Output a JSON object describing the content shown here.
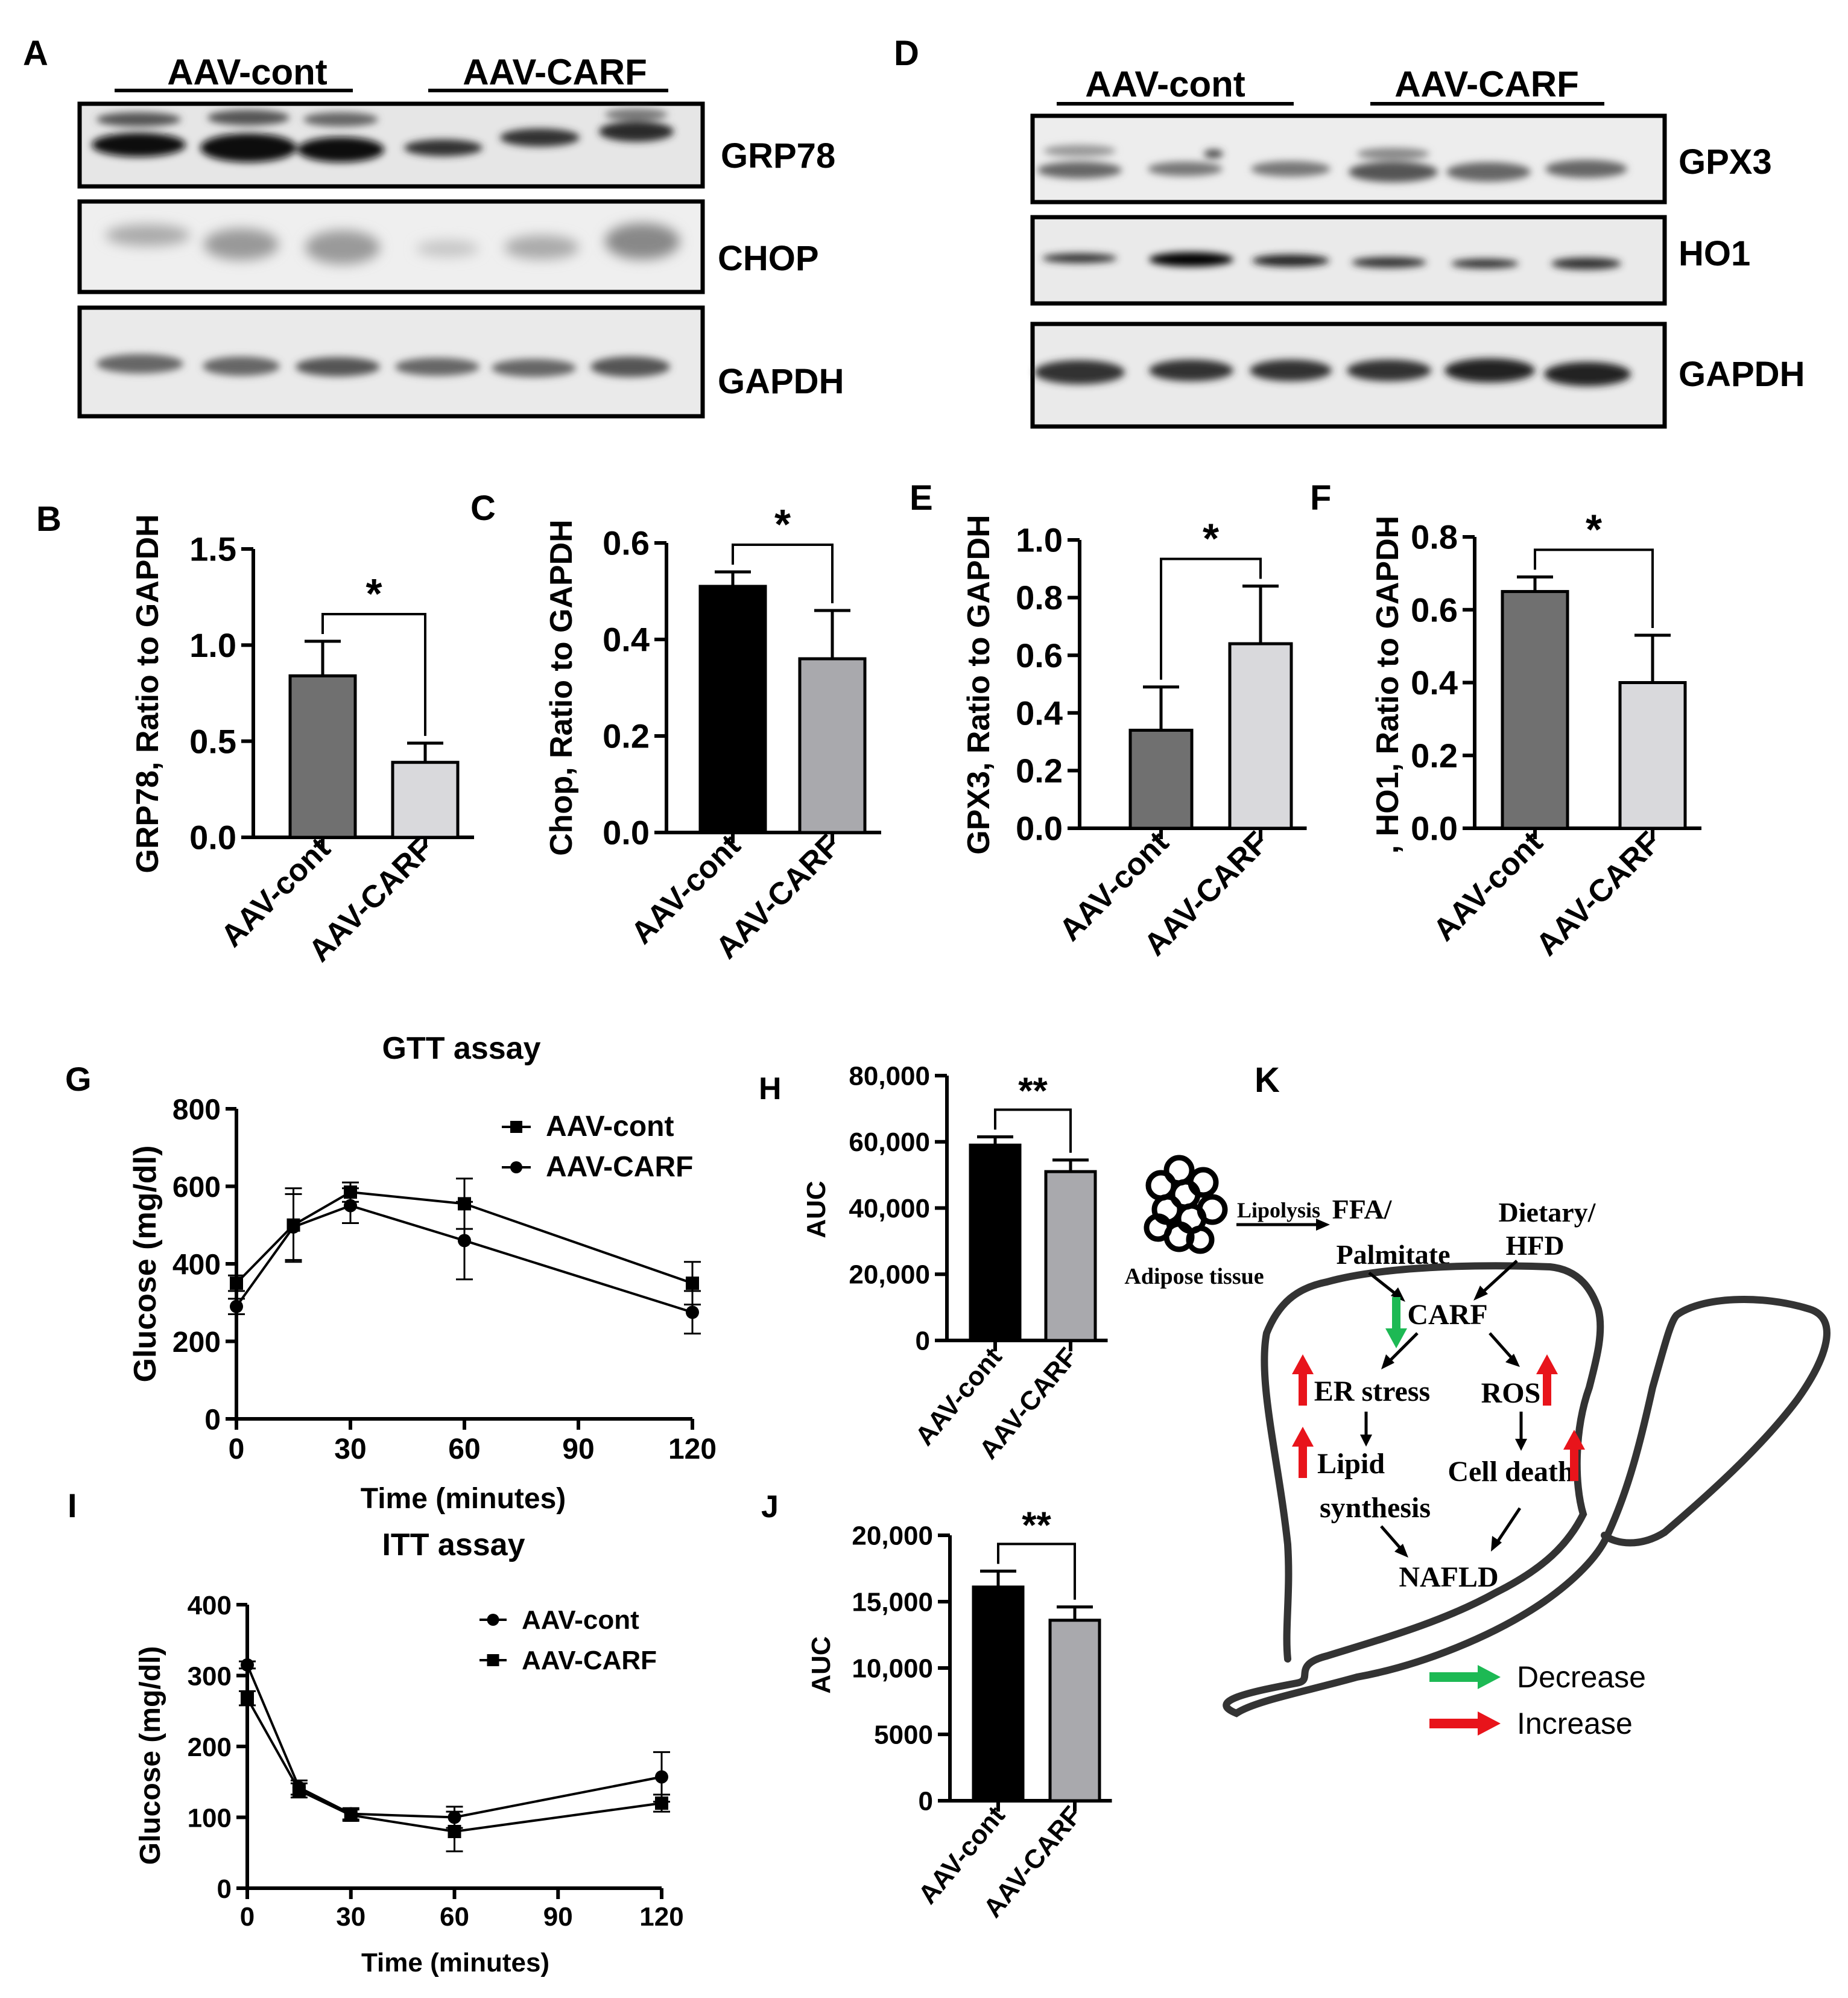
{
  "panels": {
    "A": {
      "letter": "A",
      "groups": [
        "AAV-cont",
        "AAV-CARF"
      ],
      "bands": [
        "GRP78",
        "CHOP",
        "GAPDH"
      ]
    },
    "D": {
      "letter": "D",
      "groups": [
        "AAV-cont",
        "AAV-CARF"
      ],
      "bands": [
        "GPX3",
        "HO1",
        "GAPDH"
      ]
    },
    "K": {
      "letter": "K",
      "adipose_label": "Adipose tissue",
      "lipolysis": "Lipolysis",
      "ffa_line1": "FFA/",
      "ffa_line2": "Palmitate",
      "dietary_line1": "Dietary/",
      "dietary_line2": "HFD",
      "carf": "CARF",
      "er_stress": "ER stress",
      "ros": "ROS",
      "lipid_line1": "Lipid",
      "lipid_line2": "synthesis",
      "cell_death": "Cell death",
      "nafld": "NAFLD",
      "legend_decrease": "Decrease",
      "legend_increase": "Increase",
      "color_decrease": "#1db954",
      "color_increase": "#e8141b"
    }
  },
  "chart_data": [
    {
      "id": "B",
      "letter": "B",
      "type": "bar",
      "categories": [
        "AAV-cont",
        "AAV-CARF"
      ],
      "values": [
        0.84,
        0.39
      ],
      "errors": [
        0.18,
        0.1
      ],
      "colors": [
        "#707070",
        "#d9d9dc"
      ],
      "ylabel": "GRP78, Ratio to GAPDH",
      "ylim": [
        0,
        1.5
      ],
      "yticks": [
        "0.0",
        "0.5",
        "1.0",
        "1.5"
      ],
      "ytick_values": [
        0,
        0.5,
        1.0,
        1.5
      ],
      "significance": "*"
    },
    {
      "id": "C",
      "letter": "C",
      "type": "bar",
      "categories": [
        "AAV-cont",
        "AAV-CARF"
      ],
      "values": [
        0.51,
        0.36
      ],
      "errors": [
        0.03,
        0.1
      ],
      "colors": [
        "#000000",
        "#a9a9ad"
      ],
      "ylabel": "Chop, Ratio to GAPDH",
      "ylim": [
        0,
        0.6
      ],
      "yticks": [
        "0.0",
        "0.2",
        "0.4",
        "0.6"
      ],
      "ytick_values": [
        0,
        0.2,
        0.4,
        0.6
      ],
      "significance": "*"
    },
    {
      "id": "E",
      "letter": "E",
      "type": "bar",
      "categories": [
        "AAV-cont",
        "AAV-CARF"
      ],
      "values": [
        0.34,
        0.64
      ],
      "errors": [
        0.15,
        0.2
      ],
      "colors": [
        "#707070",
        "#d9d9dc"
      ],
      "ylabel": "GPX3, Ratio to GAPDH",
      "ylim": [
        0,
        1.0
      ],
      "yticks": [
        "0.0",
        "0.2",
        "0.4",
        "0.6",
        "0.8",
        "1.0"
      ],
      "ytick_values": [
        0,
        0.2,
        0.4,
        0.6,
        0.8,
        1.0
      ],
      "significance": "*"
    },
    {
      "id": "F",
      "letter": "F",
      "type": "bar",
      "categories": [
        "AAV-cont",
        "AAV-CARF"
      ],
      "values": [
        0.65,
        0.4
      ],
      "errors": [
        0.04,
        0.13
      ],
      "colors": [
        "#707070",
        "#d9d9dc"
      ],
      "ylabel": ", HO1, Ratio to GAPDH",
      "ylim": [
        0,
        0.8
      ],
      "yticks": [
        "0.0",
        "0.2",
        "0.4",
        "0.6",
        "0.8"
      ],
      "ytick_values": [
        0,
        0.2,
        0.4,
        0.6,
        0.8
      ],
      "significance": "*"
    },
    {
      "id": "G",
      "letter": "G",
      "type": "line",
      "title": "GTT assay",
      "xlabel": "Time (minutes)",
      "ylabel": "Glucose (mg/dl)",
      "x": [
        0,
        15,
        30,
        60,
        120
      ],
      "xlim": [
        0,
        120
      ],
      "xticks": [
        "0",
        "30",
        "60",
        "90",
        "120"
      ],
      "xtick_values": [
        0,
        30,
        60,
        90,
        120
      ],
      "ylim": [
        0,
        800
      ],
      "yticks": [
        "0",
        "200",
        "400",
        "600",
        "800"
      ],
      "ytick_values": [
        0,
        200,
        400,
        600,
        800
      ],
      "legend_position": "top-right",
      "series": [
        {
          "name": "AAV-cont",
          "marker": "square",
          "values": [
            350,
            500,
            585,
            555,
            350
          ],
          "errors": [
            20,
            95,
            25,
            65,
            55
          ]
        },
        {
          "name": "AAV-CARF",
          "marker": "circle",
          "values": [
            290,
            495,
            550,
            460,
            275
          ],
          "errors": [
            20,
            85,
            45,
            100,
            55
          ]
        }
      ]
    },
    {
      "id": "H",
      "letter": "H",
      "type": "bar",
      "categories": [
        "AAV-cont",
        "AAV-CARF"
      ],
      "values": [
        59000,
        51000
      ],
      "errors": [
        2500,
        3500
      ],
      "colors": [
        "#000000",
        "#a9a9ad"
      ],
      "ylabel": "AUC",
      "ylim": [
        0,
        80000
      ],
      "yticks": [
        "0",
        "20,000",
        "40,000",
        "60,000",
        "80,000"
      ],
      "ytick_values": [
        0,
        20000,
        40000,
        60000,
        80000
      ],
      "significance": "**"
    },
    {
      "id": "I",
      "letter": "I",
      "type": "line",
      "title": "ITT assay",
      "xlabel": "Time (minutes)",
      "ylabel": "Glucose (mg/dl)",
      "x": [
        0,
        15,
        30,
        60,
        120
      ],
      "xlim": [
        0,
        120
      ],
      "xticks": [
        "0",
        "30",
        "60",
        "90",
        "120"
      ],
      "xtick_values": [
        0,
        30,
        60,
        90,
        120
      ],
      "ylim": [
        0,
        400
      ],
      "yticks": [
        "0",
        "100",
        "200",
        "300",
        "400"
      ],
      "ytick_values": [
        0,
        100,
        200,
        300,
        400
      ],
      "legend_position": "top-right",
      "series": [
        {
          "name": "AAV-cont",
          "marker": "circle",
          "values": [
            315,
            142,
            105,
            100,
            157
          ],
          "errors": [
            5,
            10,
            8,
            15,
            35
          ]
        },
        {
          "name": "AAV-CARF",
          "marker": "square",
          "values": [
            268,
            138,
            103,
            80,
            120
          ],
          "errors": [
            10,
            10,
            8,
            28,
            12
          ]
        }
      ]
    },
    {
      "id": "J",
      "letter": "J",
      "type": "bar",
      "categories": [
        "AAV-cont",
        "AAV-CARF"
      ],
      "values": [
        16100,
        13600
      ],
      "errors": [
        1200,
        1000
      ],
      "colors": [
        "#000000",
        "#a9a9ad"
      ],
      "ylabel": "AUC",
      "ylim": [
        0,
        20000
      ],
      "yticks": [
        "0",
        "5000",
        "10,000",
        "15,000",
        "20,000"
      ],
      "ytick_values": [
        0,
        5000,
        10000,
        15000,
        20000
      ],
      "significance": "**"
    }
  ]
}
